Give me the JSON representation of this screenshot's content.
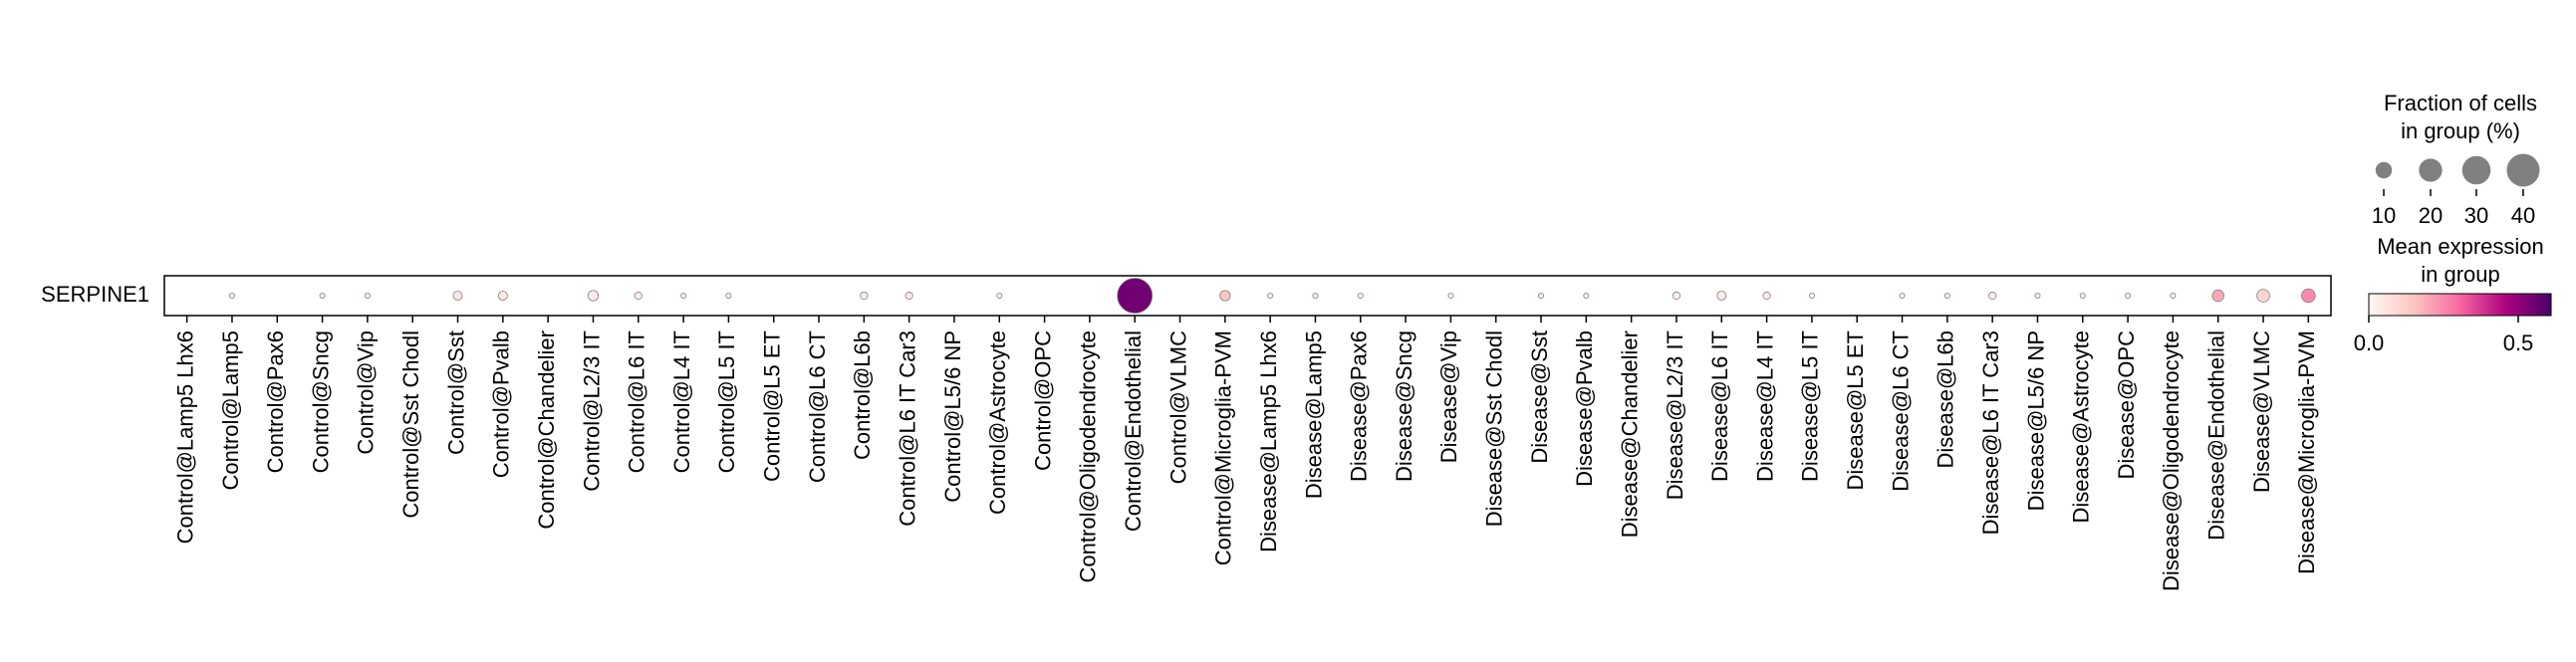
{
  "chart_data": {
    "type": "dotplot",
    "gene": "SERPINE1",
    "categories": [
      "Control@Lamp5 Lhx6",
      "Control@Lamp5",
      "Control@Pax6",
      "Control@Sncg",
      "Control@Vip",
      "Control@Sst Chodl",
      "Control@Sst",
      "Control@Pvalb",
      "Control@Chandelier",
      "Control@L2/3 IT",
      "Control@L6 IT",
      "Control@L4 IT",
      "Control@L5 IT",
      "Control@L5 ET",
      "Control@L6 CT",
      "Control@L6b",
      "Control@L6 IT Car3",
      "Control@L5/6 NP",
      "Control@Astrocyte",
      "Control@OPC",
      "Control@Oligodendrocyte",
      "Control@Endothelial",
      "Control@VLMC",
      "Control@Microglia-PVM",
      "Disease@Lamp5 Lhx6",
      "Disease@Lamp5",
      "Disease@Pax6",
      "Disease@Sncg",
      "Disease@Vip",
      "Disease@Sst Chodl",
      "Disease@Sst",
      "Disease@Pvalb",
      "Disease@Chandelier",
      "Disease@L2/3 IT",
      "Disease@L6 IT",
      "Disease@L4 IT",
      "Disease@L5 IT",
      "Disease@L5 ET",
      "Disease@L6 CT",
      "Disease@L6b",
      "Disease@L6 IT Car3",
      "Disease@L5/6 NP",
      "Disease@Astrocyte",
      "Disease@OPC",
      "Disease@Oligodendrocyte",
      "Disease@Endothelial",
      "Disease@VLMC",
      "Disease@Microglia-PVM"
    ],
    "fraction": [
      0,
      1,
      0,
      1,
      1,
      0,
      3,
      3,
      0,
      4,
      2,
      1,
      1,
      0,
      0,
      2,
      2,
      0,
      1,
      0,
      0,
      45,
      0,
      4,
      1,
      1,
      1,
      0,
      1,
      0,
      1,
      1,
      0,
      2,
      3,
      2,
      1,
      0,
      1,
      1,
      2,
      1,
      1,
      1,
      1,
      5,
      6,
      7
    ],
    "expression": [
      0,
      0.02,
      0,
      0.02,
      0.02,
      0,
      0.05,
      0.05,
      0,
      0.04,
      0.03,
      0.02,
      0.02,
      0,
      0,
      0.03,
      0.04,
      0,
      0.02,
      0,
      0,
      0.55,
      0,
      0.15,
      0.02,
      0.02,
      0.02,
      0,
      0.02,
      0,
      0.02,
      0.02,
      0,
      0.03,
      0.04,
      0.03,
      0.02,
      0,
      0.02,
      0.02,
      0.03,
      0.02,
      0.02,
      0.02,
      0.02,
      0.2,
      0.1,
      0.25
    ],
    "size_legend_title": [
      "Fraction of cells",
      "in group (%)"
    ],
    "size_ticks": [
      10,
      20,
      30,
      40
    ],
    "size_lim": [
      0,
      40
    ],
    "color_legend_title": [
      "Mean expression",
      "in group"
    ],
    "color_lim": [
      0,
      0.61
    ],
    "color_ticks": [
      {
        "value": 0,
        "label": "0.0"
      },
      0.5
    ],
    "colormap": [
      "#fff7f3",
      "#fcc5c0",
      "#f768a1",
      "#ae017e",
      "#49006a"
    ],
    "size_legend_color": "#808080"
  }
}
